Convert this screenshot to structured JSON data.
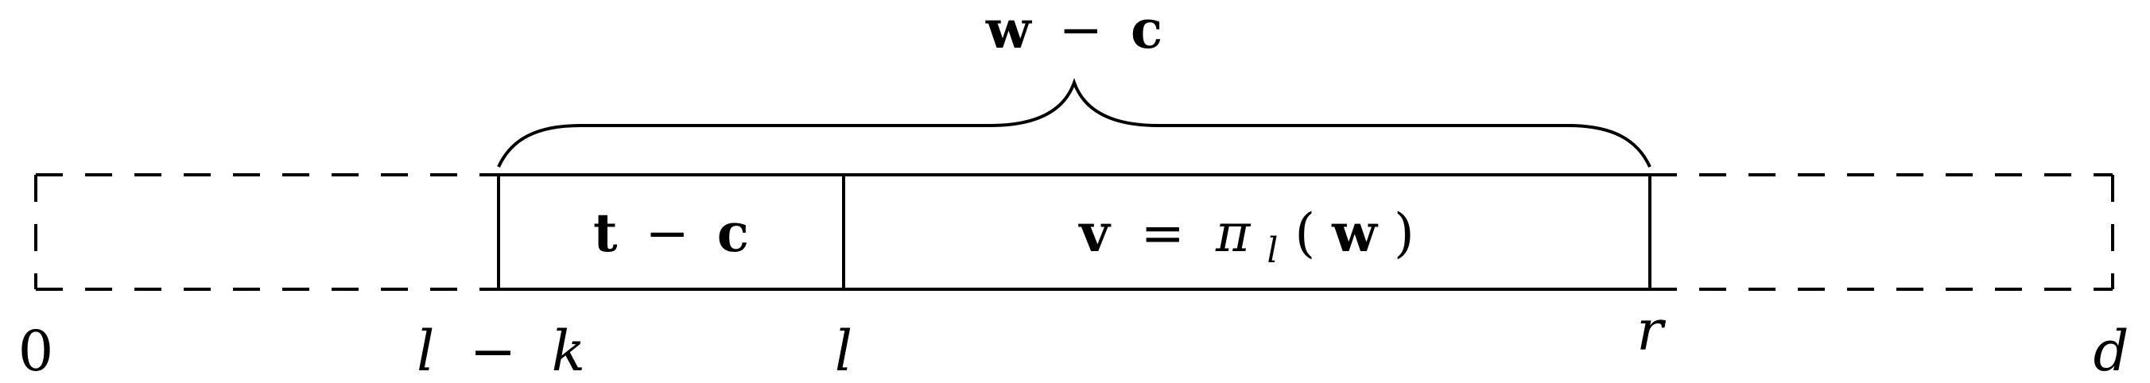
{
  "brace_label": {
    "w": "w",
    "minus": "−",
    "c": "c"
  },
  "segment_left": {
    "t": "t",
    "minus": "−",
    "c": "c"
  },
  "segment_right": {
    "v": "v",
    "equals": "=",
    "pi": "π",
    "sub_l": "l",
    "open_paren": "(",
    "w": "w",
    "close_paren": ")"
  },
  "axis_labels": {
    "zero": "0",
    "l_minus_k": {
      "l": "l",
      "minus": "−",
      "k": "k"
    },
    "l": "l",
    "r": "r",
    "d": "d"
  }
}
